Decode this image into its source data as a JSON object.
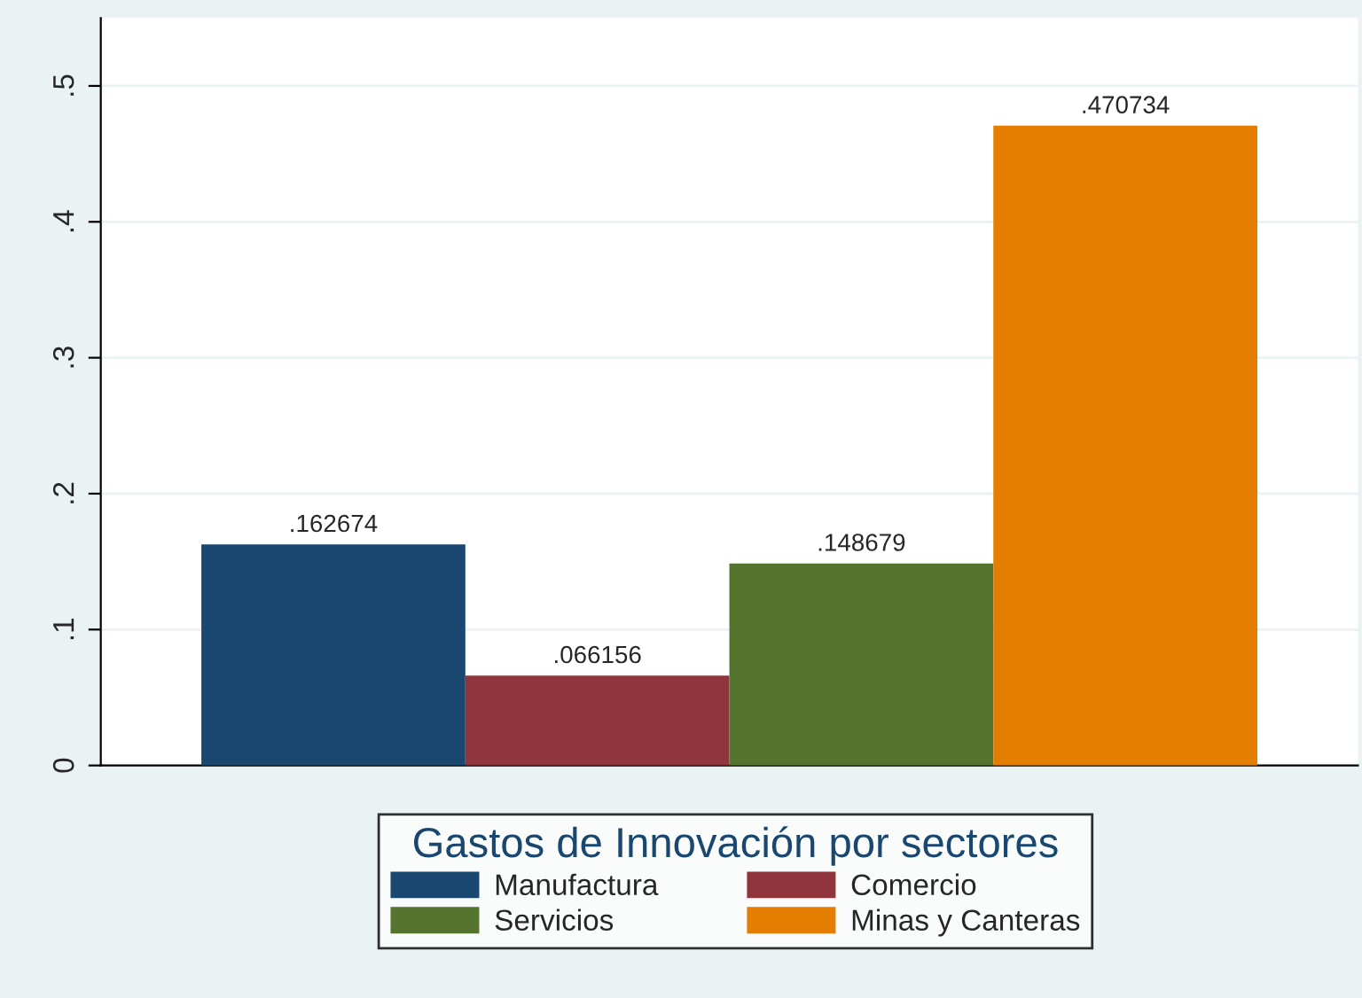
{
  "chart_data": {
    "type": "bar",
    "categories": [
      null
    ],
    "series": [
      {
        "name": "Manufactura",
        "color": "#1a476f",
        "values": [
          0.162674
        ],
        "value_labels": [
          ".162674"
        ]
      },
      {
        "name": "Comercio",
        "color": "#90353b",
        "values": [
          0.066156
        ],
        "value_labels": [
          ".066156"
        ]
      },
      {
        "name": "Servicios",
        "color": "#55752f",
        "values": [
          0.148679
        ],
        "value_labels": [
          ".148679"
        ]
      },
      {
        "name": "Minas y Canteras",
        "color": "#e37e00",
        "values": [
          0.470734
        ],
        "value_labels": [
          ".470734"
        ]
      }
    ],
    "legend_title": "Gastos de Innovación por sectores",
    "legend": "bottom",
    "ylim": [
      0,
      0.55
    ],
    "yticks": [
      {
        "value": 0,
        "label": "0"
      },
      {
        "value": 0.1,
        "label": ".1"
      },
      {
        "value": 0.2,
        "label": ".2"
      },
      {
        "value": 0.3,
        "label": ".3"
      },
      {
        "value": 0.4,
        "label": ".4"
      },
      {
        "value": 0.5,
        "label": ".5"
      }
    ],
    "grid": "y"
  }
}
